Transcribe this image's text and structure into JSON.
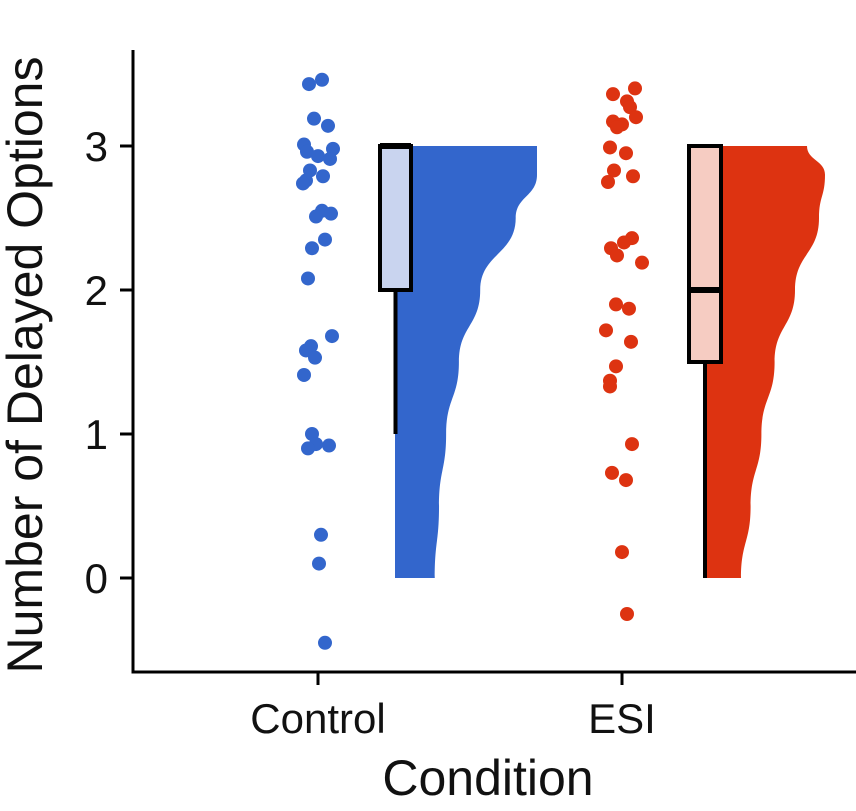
{
  "chart_data": {
    "type": "raincloud",
    "xlabel": "Condition",
    "ylabel": "Number of Delayed Options",
    "ylim": [
      -0.7,
      3.6
    ],
    "yticks": [
      0,
      1,
      2,
      3
    ],
    "ytick_labels": [
      "0",
      "1",
      "2",
      "3"
    ],
    "categories": [
      "Control",
      "ESI"
    ],
    "grid": false,
    "legend": "none",
    "colors": {
      "Control": "#3366cc",
      "ESI": "#dd3311",
      "Control_box": "#c9d4ef",
      "ESI_box": "#f6ccc2"
    },
    "series": [
      {
        "name": "Control",
        "points": [
          3.46,
          3.43,
          3.19,
          3.14,
          3.01,
          2.98,
          2.96,
          2.93,
          2.91,
          2.83,
          2.79,
          2.76,
          2.74,
          2.55,
          2.53,
          2.51,
          2.35,
          2.29,
          2.08,
          1.68,
          1.61,
          1.58,
          1.53,
          1.41,
          1.0,
          0.93,
          0.92,
          0.9,
          0.3,
          0.1,
          -0.45
        ],
        "box": {
          "q1": 2,
          "median": 3,
          "q3": 3,
          "whisker_low": 1,
          "whisker_high": 3
        },
        "density_y": [
          0,
          0.5,
          1,
          1.5,
          2,
          2.5,
          2.8,
          3
        ],
        "density_w": [
          0.28,
          0.31,
          0.36,
          0.45,
          0.6,
          0.85,
          1.0,
          1.0
        ]
      },
      {
        "name": "ESI",
        "points": [
          3.4,
          3.36,
          3.31,
          3.27,
          3.2,
          3.17,
          3.15,
          3.13,
          2.99,
          2.95,
          2.83,
          2.79,
          2.75,
          2.36,
          2.33,
          2.29,
          2.24,
          2.19,
          1.9,
          1.87,
          1.72,
          1.64,
          1.47,
          1.37,
          1.33,
          0.93,
          0.73,
          0.68,
          0.18,
          -0.25
        ],
        "box": {
          "q1": 1.5,
          "median": 2,
          "q3": 3,
          "whisker_low": 0,
          "whisker_high": 3
        },
        "density_y": [
          0,
          0.5,
          1,
          1.5,
          2,
          2.5,
          2.8,
          3
        ],
        "density_w": [
          0.3,
          0.38,
          0.47,
          0.58,
          0.75,
          0.95,
          1.0,
          0.85
        ]
      }
    ]
  }
}
